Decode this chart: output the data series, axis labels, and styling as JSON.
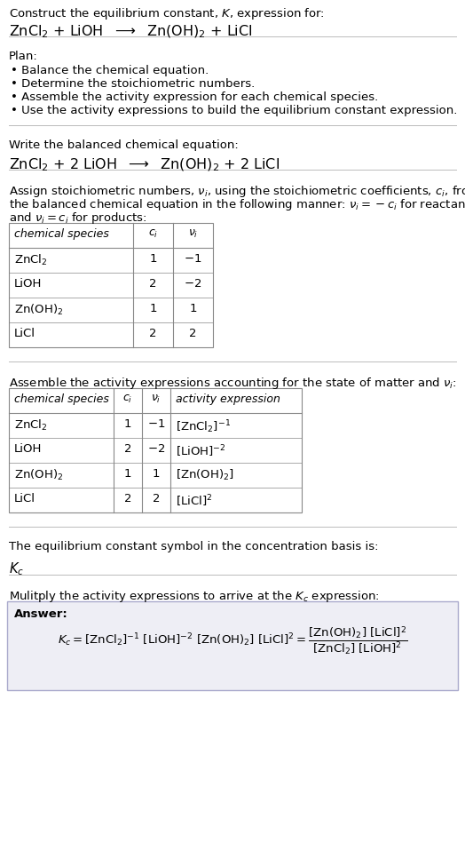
{
  "title_line1": "Construct the equilibrium constant, $K$, expression for:",
  "title_line2": "$\\mathrm{ZnCl_2}$ + LiOH  $\\longrightarrow$  $\\mathrm{Zn(OH)_2}$ + LiCl",
  "plan_header": "Plan:",
  "plan_bullets": [
    "• Balance the chemical equation.",
    "• Determine the stoichiometric numbers.",
    "• Assemble the activity expression for each chemical species.",
    "• Use the activity expressions to build the equilibrium constant expression."
  ],
  "balanced_header": "Write the balanced chemical equation:",
  "balanced_eq": "$\\mathrm{ZnCl_2}$ + 2 LiOH  $\\longrightarrow$  $\\mathrm{Zn(OH)_2}$ + 2 LiCl",
  "stoich_text1": "Assign stoichiometric numbers, $\\nu_i$, using the stoichiometric coefficients, $c_i$, from",
  "stoich_text2": "the balanced chemical equation in the following manner: $\\nu_i = -c_i$ for reactants",
  "stoich_text3": "and $\\nu_i = c_i$ for products:",
  "table1_headers": [
    "chemical species",
    "$c_i$",
    "$\\nu_i$"
  ],
  "table1_rows": [
    [
      "$\\mathrm{ZnCl_2}$",
      "1",
      "$-1$"
    ],
    [
      "LiOH",
      "2",
      "$-2$"
    ],
    [
      "$\\mathrm{Zn(OH)_2}$",
      "1",
      "1"
    ],
    [
      "LiCl",
      "2",
      "2"
    ]
  ],
  "activity_header": "Assemble the activity expressions accounting for the state of matter and $\\nu_i$:",
  "table2_headers": [
    "chemical species",
    "$c_i$",
    "$\\nu_i$",
    "activity expression"
  ],
  "table2_rows": [
    [
      "$\\mathrm{ZnCl_2}$",
      "1",
      "$-1$",
      "$[\\mathrm{ZnCl_2}]^{-1}$"
    ],
    [
      "LiOH",
      "2",
      "$-2$",
      "$[\\mathrm{LiOH}]^{-2}$"
    ],
    [
      "$\\mathrm{Zn(OH)_2}$",
      "1",
      "1",
      "$[\\mathrm{Zn(OH)_2}]$"
    ],
    [
      "LiCl",
      "2",
      "2",
      "$[\\mathrm{LiCl}]^2$"
    ]
  ],
  "kc_symbol_header": "The equilibrium constant symbol in the concentration basis is:",
  "kc_symbol": "$K_c$",
  "multiply_header": "Mulitply the activity expressions to arrive at the $K_c$ expression:",
  "answer_label": "Answer:",
  "bg_color": "#ffffff",
  "text_color": "#000000",
  "answer_box_bg": "#eeeef5",
  "answer_box_border": "#aaaacc",
  "separator_color": "#bbbbbb",
  "font_size": 9.5
}
